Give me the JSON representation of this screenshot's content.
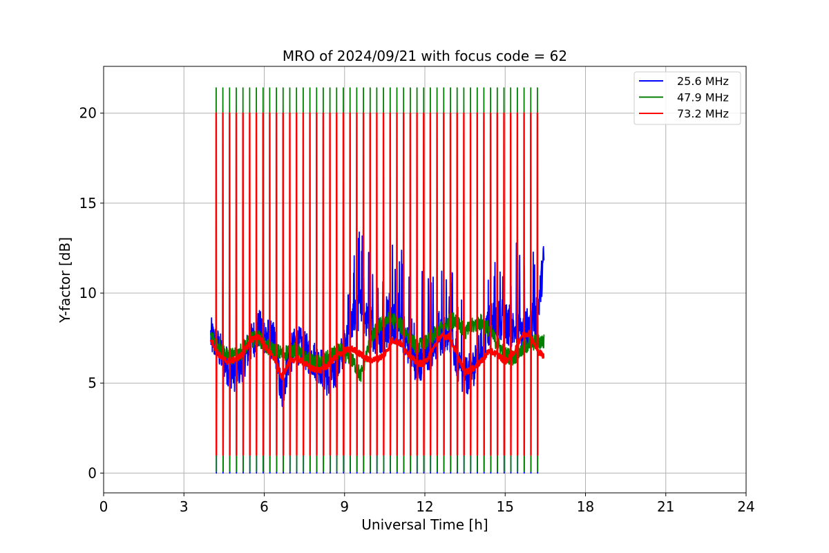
{
  "chart_data": {
    "type": "line",
    "title": "MRO of 2024/09/21 with focus code = 62",
    "xlabel": "Universal Time [h]",
    "ylabel": "Y-factor [dB]",
    "xlim": [
      0,
      24
    ],
    "ylim": [
      -1.1,
      22.6
    ],
    "xticks": [
      0,
      3,
      6,
      9,
      12,
      15,
      18,
      21,
      24
    ],
    "yticks": [
      0,
      5,
      10,
      15,
      20
    ],
    "grid": true,
    "legend_position": "top-right",
    "series": [
      {
        "name": "25.6 MHz",
        "color": "#0000ff",
        "baseline": [
          [
            4.0,
            7.6
          ],
          [
            4.3,
            6.9
          ],
          [
            4.6,
            6.0
          ],
          [
            4.9,
            5.6
          ],
          [
            5.2,
            6.2
          ],
          [
            5.5,
            7.2
          ],
          [
            5.8,
            8.0
          ],
          [
            6.1,
            7.6
          ],
          [
            6.4,
            7.2
          ],
          [
            6.65,
            4.2
          ],
          [
            6.9,
            6.3
          ],
          [
            7.2,
            7.2
          ],
          [
            7.5,
            6.8
          ],
          [
            7.8,
            6.4
          ],
          [
            8.1,
            6.0
          ],
          [
            8.4,
            5.2
          ],
          [
            8.7,
            5.8
          ],
          [
            9.0,
            7.0
          ],
          [
            9.3,
            8.5
          ],
          [
            9.6,
            9.2
          ],
          [
            9.9,
            8.2
          ],
          [
            10.2,
            7.6
          ],
          [
            10.5,
            7.8
          ],
          [
            10.8,
            8.3
          ],
          [
            11.1,
            8.0
          ],
          [
            11.4,
            7.0
          ],
          [
            11.7,
            6.0
          ],
          [
            12.0,
            6.2
          ],
          [
            12.3,
            7.0
          ],
          [
            12.6,
            7.6
          ],
          [
            12.9,
            8.0
          ],
          [
            13.2,
            6.2
          ],
          [
            13.5,
            5.3
          ],
          [
            13.8,
            5.8
          ],
          [
            14.1,
            7.0
          ],
          [
            14.4,
            8.2
          ],
          [
            14.7,
            8.6
          ],
          [
            15.0,
            8.3
          ],
          [
            15.3,
            8.0
          ],
          [
            15.6,
            7.8
          ],
          [
            15.9,
            8.2
          ],
          [
            16.2,
            8.6
          ],
          [
            16.45,
            12.0
          ]
        ],
        "pulse_high": 20.0,
        "pulse_low": 0.0,
        "pulse_period": 0.25,
        "pulse_start": 4.2,
        "pulse_end": 16.3
      },
      {
        "name": "47.9 MHz",
        "color": "#008000",
        "baseline": [
          [
            4.0,
            7.6
          ],
          [
            4.3,
            7.1
          ],
          [
            4.6,
            6.5
          ],
          [
            4.9,
            6.5
          ],
          [
            5.2,
            6.8
          ],
          [
            5.5,
            7.4
          ],
          [
            5.8,
            7.5
          ],
          [
            6.1,
            7.0
          ],
          [
            6.4,
            6.8
          ],
          [
            6.7,
            6.6
          ],
          [
            7.0,
            6.9
          ],
          [
            7.3,
            6.7
          ],
          [
            7.6,
            6.3
          ],
          [
            7.9,
            6.1
          ],
          [
            8.2,
            6.2
          ],
          [
            8.5,
            6.5
          ],
          [
            8.8,
            6.8
          ],
          [
            9.1,
            6.6
          ],
          [
            9.4,
            6.0
          ],
          [
            9.6,
            5.4
          ],
          [
            9.9,
            7.0
          ],
          [
            10.2,
            8.0
          ],
          [
            10.5,
            8.5
          ],
          [
            10.8,
            8.5
          ],
          [
            11.1,
            8.2
          ],
          [
            11.4,
            7.6
          ],
          [
            11.7,
            7.0
          ],
          [
            12.0,
            7.2
          ],
          [
            12.3,
            7.6
          ],
          [
            12.6,
            8.0
          ],
          [
            12.9,
            8.4
          ],
          [
            13.2,
            8.6
          ],
          [
            13.5,
            7.8
          ],
          [
            13.8,
            8.2
          ],
          [
            14.1,
            8.4
          ],
          [
            14.4,
            8.0
          ],
          [
            14.7,
            7.2
          ],
          [
            15.0,
            6.6
          ],
          [
            15.3,
            6.4
          ],
          [
            15.6,
            6.8
          ],
          [
            15.9,
            7.2
          ],
          [
            16.2,
            7.3
          ],
          [
            16.45,
            7.3
          ]
        ],
        "pulse_high": 21.4,
        "pulse_low": 0.1,
        "pulse_period": 0.25,
        "pulse_start": 4.2,
        "pulse_end": 16.3
      },
      {
        "name": "73.2 MHz",
        "color": "#ff0000",
        "baseline": [
          [
            4.0,
            7.4
          ],
          [
            4.3,
            6.6
          ],
          [
            4.6,
            6.2
          ],
          [
            4.9,
            6.3
          ],
          [
            5.2,
            6.6
          ],
          [
            5.5,
            7.4
          ],
          [
            5.8,
            7.6
          ],
          [
            6.1,
            6.9
          ],
          [
            6.4,
            6.3
          ],
          [
            6.65,
            5.3
          ],
          [
            6.9,
            6.1
          ],
          [
            7.2,
            6.4
          ],
          [
            7.5,
            6.1
          ],
          [
            7.8,
            5.8
          ],
          [
            8.1,
            5.7
          ],
          [
            8.4,
            6.0
          ],
          [
            8.7,
            6.5
          ],
          [
            9.0,
            6.8
          ],
          [
            9.3,
            6.9
          ],
          [
            9.6,
            6.6
          ],
          [
            9.9,
            6.3
          ],
          [
            10.2,
            6.3
          ],
          [
            10.5,
            6.6
          ],
          [
            10.8,
            7.4
          ],
          [
            11.1,
            7.2
          ],
          [
            11.4,
            6.6
          ],
          [
            11.7,
            6.1
          ],
          [
            12.0,
            6.1
          ],
          [
            12.3,
            6.9
          ],
          [
            12.6,
            7.6
          ],
          [
            12.9,
            7.6
          ],
          [
            13.2,
            6.6
          ],
          [
            13.5,
            5.6
          ],
          [
            13.8,
            5.8
          ],
          [
            14.1,
            6.2
          ],
          [
            14.4,
            6.8
          ],
          [
            14.7,
            6.6
          ],
          [
            15.0,
            6.2
          ],
          [
            15.3,
            6.6
          ],
          [
            15.6,
            7.6
          ],
          [
            15.9,
            7.8
          ],
          [
            16.2,
            6.8
          ],
          [
            16.45,
            6.5
          ]
        ],
        "pulse_high": 20.0,
        "pulse_low": 1.0,
        "pulse_period": 0.25,
        "pulse_start": 4.2,
        "pulse_end": 16.3
      }
    ]
  }
}
